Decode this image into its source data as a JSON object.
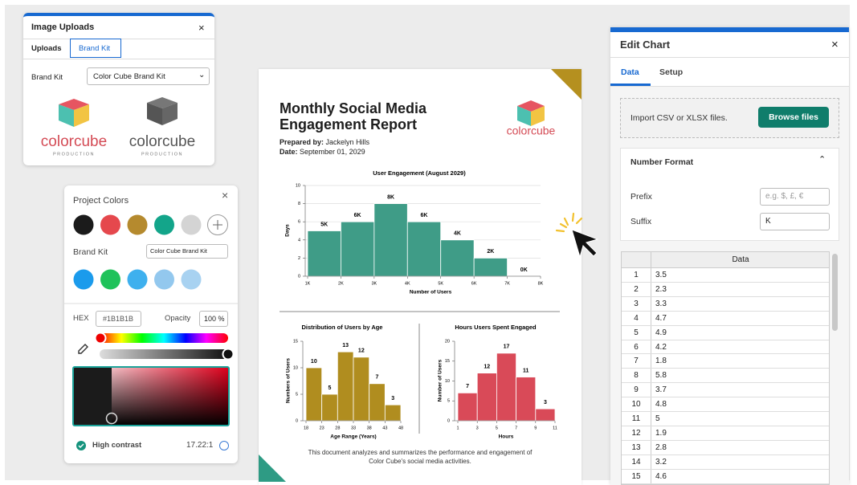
{
  "image_uploads": {
    "title": "Image Uploads",
    "tabs": [
      "Uploads",
      "Brand Kit"
    ],
    "brand_kit_label": "Brand Kit",
    "brand_kit_value": "Color Cube Brand Kit",
    "logos": [
      {
        "name": "colorcube",
        "tagline": "PRODUCTION"
      },
      {
        "name": "colorcube",
        "tagline": "PRODUCTION"
      }
    ]
  },
  "color_panel": {
    "title": "Project Colors",
    "project_colors": [
      "#1b1b1b",
      "#e5484d",
      "#b58a2e",
      "#13a58a",
      "#d4d4d4"
    ],
    "brand_kit_label": "Brand Kit",
    "brand_kit_value": "Color Cube Brand Kit",
    "brand_colors": [
      "#1b9bec",
      "#1fc25a",
      "#3eb0ee",
      "#93c8ee",
      "#a8d2f1"
    ],
    "hex_label": "HEX",
    "hex_value": "#1B1B1B",
    "opacity_label": "Opacity",
    "opacity_value": "100 %",
    "contrast_label": "High contrast",
    "contrast_value": "17.22:1"
  },
  "document": {
    "title": "Monthly Social Media Engagement Report",
    "prepared_by_label": "Prepared by:",
    "prepared_by": "Jackelyn Hills",
    "date_label": "Date:",
    "date": "September 01, 2029",
    "logo": "colorcube",
    "footer": "This document analyzes and summarizes the performance and engagement of Color Cube's social media activities."
  },
  "chart_data": [
    {
      "type": "histogram",
      "title": "User Engagement (August 2029)",
      "x_label": "Number of Users",
      "y_label": "Days",
      "color": "#3f9c87",
      "bins": [
        {
          "value": 1000,
          "label": "1K"
        },
        {
          "value": 2000,
          "label": "2K"
        },
        {
          "value": 3000,
          "label": "3K"
        },
        {
          "value": 4000,
          "label": "4K"
        },
        {
          "value": 5000,
          "label": "5K"
        },
        {
          "value": 6000,
          "label": "6K"
        },
        {
          "value": 7000,
          "label": "7K"
        },
        {
          "value": 8000,
          "label": "8K"
        }
      ],
      "values": [
        5,
        6,
        8,
        6,
        4,
        2,
        0
      ],
      "value_labels": [
        "5K",
        "6K",
        "8K",
        "6K",
        "4K",
        "2K",
        "0K"
      ],
      "xlim": [
        1000,
        8000
      ],
      "ylim": [
        0,
        10
      ],
      "yticks": [
        0,
        2,
        4,
        6,
        8,
        10
      ],
      "grid": true
    },
    {
      "type": "histogram",
      "title": "Distribution of Users by Age",
      "x_label": "Age Range (Years)",
      "y_label": "Numbers of Users",
      "color": "#b08d1f",
      "bins": [
        18,
        23,
        28,
        33,
        38,
        43,
        48
      ],
      "values": [
        10,
        5,
        13,
        12,
        7,
        3
      ],
      "xlim": [
        18,
        48
      ],
      "ylim": [
        0,
        15
      ],
      "yticks": [
        0,
        5,
        10,
        15
      ],
      "grid": false
    },
    {
      "type": "histogram",
      "title": "Hours Users Spent Engaged",
      "x_label": "Hours",
      "y_label": "Number of Users",
      "color": "#d94a58",
      "bins": [
        1,
        3,
        5,
        7,
        9,
        11
      ],
      "values": [
        7,
        12,
        17,
        11,
        3
      ],
      "xlim": [
        1,
        11
      ],
      "ylim": [
        0,
        20
      ],
      "yticks": [
        0,
        5,
        10,
        15,
        20
      ],
      "grid": false
    }
  ],
  "edit_chart": {
    "title": "Edit Chart",
    "tabs": [
      "Data",
      "Setup"
    ],
    "import_text": "Import CSV or XLSX files.",
    "browse_button": "Browse files",
    "number_format": "Number Format",
    "prefix_label": "Prefix",
    "prefix_placeholder": "e.g. $, £, €",
    "suffix_label": "Suffix",
    "suffix_value": "K",
    "table_header": "Data",
    "rows": [
      [
        1,
        3.5
      ],
      [
        2,
        2.3
      ],
      [
        3,
        3.3
      ],
      [
        4,
        4.7
      ],
      [
        5,
        4.9
      ],
      [
        6,
        4.2
      ],
      [
        7,
        1.8
      ],
      [
        8,
        5.8
      ],
      [
        9,
        3.7
      ],
      [
        10,
        4.8
      ],
      [
        11,
        5
      ],
      [
        12,
        1.9
      ],
      [
        13,
        2.8
      ],
      [
        14,
        3.2
      ],
      [
        15,
        4.6
      ]
    ]
  }
}
